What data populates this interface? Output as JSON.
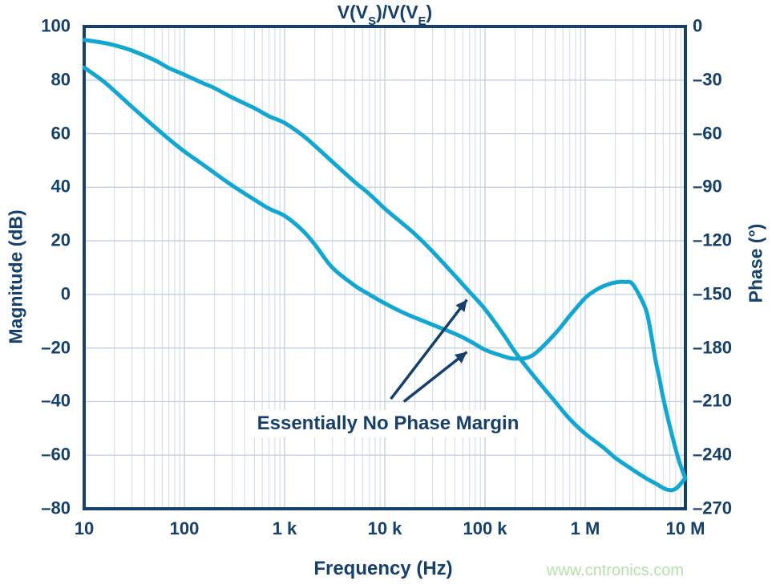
{
  "title": {
    "p1": "V(V",
    "sub1": "S",
    "p2": ")/V(V",
    "sub2": "E",
    "p3": ")"
  },
  "watermark": "www.cntronics.com",
  "colors": {
    "curve": "#12a6d2",
    "navy": "#15406b",
    "grid_minor": "#d8dfe9",
    "grid_major": "#c4d0df",
    "watermark_green": "#b7e0ad"
  },
  "chart_data": {
    "type": "line",
    "title": "V(VS)/V(VE)",
    "x_axis": {
      "label": "Frequency (Hz)",
      "scale": "log",
      "min": 10,
      "max": 10000000,
      "tick_values": [
        10,
        100,
        1000,
        10000,
        100000,
        1000000,
        10000000
      ],
      "tick_labels": [
        "10",
        "100",
        "1 k",
        "10 k",
        "100 k",
        "1 M",
        "10 M"
      ]
    },
    "left_y_axis": {
      "label": "Magnitude (dB)",
      "min": -80,
      "max": 100,
      "tick_values": [
        100,
        80,
        60,
        40,
        20,
        0,
        -20,
        -40,
        -60,
        -80
      ],
      "tick_labels": [
        "100",
        "80",
        "60",
        "40",
        "20",
        "0",
        "–20",
        "–40",
        "–60",
        "–80"
      ]
    },
    "right_y_axis": {
      "label": "Phase (°)",
      "min": -270,
      "max": 0,
      "tick_values": [
        0,
        -30,
        -60,
        -90,
        -120,
        -150,
        -180,
        -210,
        -240,
        -270
      ],
      "tick_labels": [
        "0",
        "–30",
        "–60",
        "–90",
        "–120",
        "–150",
        "–180",
        "–210",
        "–240",
        "–270"
      ]
    },
    "grid": {
      "vertical_log_minor": true,
      "vertical_major": true,
      "horizontal_major": true
    },
    "series": [
      {
        "name": "magnitude",
        "axis": "left",
        "color": "#12a6d2",
        "points": [
          [
            10,
            95
          ],
          [
            15,
            94
          ],
          [
            20,
            93
          ],
          [
            30,
            91
          ],
          [
            50,
            87.5
          ],
          [
            70,
            84.5
          ],
          [
            100,
            82
          ],
          [
            150,
            79
          ],
          [
            200,
            77
          ],
          [
            300,
            73.5
          ],
          [
            500,
            69.5
          ],
          [
            700,
            66.5
          ],
          [
            1000,
            64
          ],
          [
            1500,
            59.5
          ],
          [
            2000,
            55.5
          ],
          [
            3000,
            49.5
          ],
          [
            5000,
            42
          ],
          [
            7000,
            37.5
          ],
          [
            10000,
            32
          ],
          [
            15000,
            26.5
          ],
          [
            20000,
            22.5
          ],
          [
            30000,
            16
          ],
          [
            50000,
            7
          ],
          [
            70000,
            1
          ],
          [
            100000,
            -5.5
          ],
          [
            150000,
            -14.5
          ],
          [
            200000,
            -21.5
          ],
          [
            300000,
            -30
          ],
          [
            500000,
            -40
          ],
          [
            700000,
            -46.5
          ],
          [
            1000000,
            -52
          ],
          [
            1500000,
            -57
          ],
          [
            2000000,
            -61
          ],
          [
            3000000,
            -65.5
          ],
          [
            4000000,
            -68.5
          ],
          [
            5000000,
            -70.5
          ],
          [
            6500000,
            -72.8
          ],
          [
            8000000,
            -72.5
          ],
          [
            10000000,
            -68.5
          ]
        ]
      },
      {
        "name": "phase",
        "axis": "right",
        "color": "#12a6d2",
        "points": [
          [
            10,
            -23
          ],
          [
            15,
            -30
          ],
          [
            20,
            -36
          ],
          [
            30,
            -45
          ],
          [
            50,
            -56
          ],
          [
            70,
            -63
          ],
          [
            100,
            -70
          ],
          [
            150,
            -77
          ],
          [
            200,
            -82
          ],
          [
            300,
            -89
          ],
          [
            500,
            -97
          ],
          [
            700,
            -102
          ],
          [
            1000,
            -106
          ],
          [
            1500,
            -114
          ],
          [
            2000,
            -122
          ],
          [
            3000,
            -135
          ],
          [
            5000,
            -145
          ],
          [
            7000,
            -150
          ],
          [
            10000,
            -155
          ],
          [
            15000,
            -160
          ],
          [
            20000,
            -163
          ],
          [
            30000,
            -167
          ],
          [
            50000,
            -172
          ],
          [
            70000,
            -176
          ],
          [
            100000,
            -181
          ],
          [
            150000,
            -184.5
          ],
          [
            200000,
            -186
          ],
          [
            300000,
            -184
          ],
          [
            500000,
            -172
          ],
          [
            700000,
            -162
          ],
          [
            1000000,
            -152
          ],
          [
            1200000,
            -148.5
          ],
          [
            1500000,
            -145.5
          ],
          [
            2000000,
            -143.3
          ],
          [
            2500000,
            -143
          ],
          [
            3000000,
            -144.5
          ],
          [
            4000000,
            -158
          ],
          [
            4500000,
            -171
          ],
          [
            5000000,
            -186
          ],
          [
            5500000,
            -197
          ],
          [
            6000000,
            -208
          ],
          [
            7000000,
            -224
          ],
          [
            8500000,
            -242
          ],
          [
            10000000,
            -253
          ]
        ]
      }
    ],
    "annotation": {
      "text": "Essentially No Phase Margin",
      "arrows": [
        {
          "axis": "left",
          "from": [
            11500,
            -39
          ],
          "to": [
            66000,
            -2
          ]
        },
        {
          "axis": "left",
          "from": [
            15500,
            -40
          ],
          "to": [
            66000,
            -21.5
          ]
        }
      ]
    }
  }
}
